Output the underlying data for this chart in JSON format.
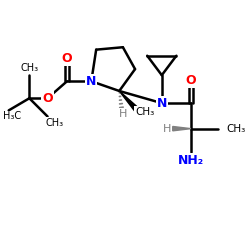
{
  "background": "#ffffff",
  "bond_color": "#000000",
  "bond_lw": 1.8,
  "atom_colors": {
    "N": "#0000ff",
    "O": "#ff0000",
    "C": "#000000",
    "H": "#808080",
    "NH2": "#0000ff"
  },
  "figsize": [
    2.5,
    2.5
  ],
  "dpi": 100,
  "xlim": [
    0,
    10
  ],
  "ylim": [
    0,
    10
  ]
}
